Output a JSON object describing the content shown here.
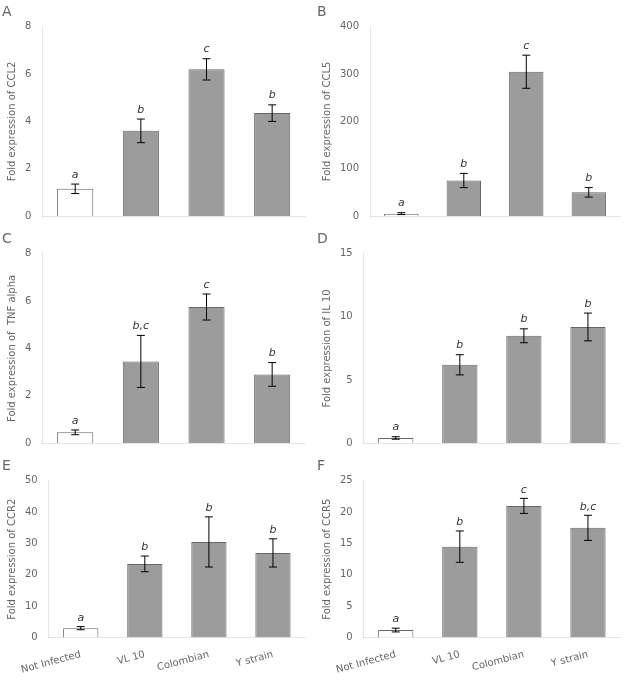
{
  "chart_data": [
    {
      "type": "bar",
      "title": "A",
      "ylabel": "Fold expression of CCL2",
      "categories": [
        "Not Infected",
        "VL 10",
        "Colombian",
        "Y strain"
      ],
      "values": [
        1.15,
        3.6,
        6.2,
        4.35
      ],
      "errors": [
        0.2,
        0.5,
        0.45,
        0.35
      ],
      "annotations": [
        "a",
        "b",
        "c",
        "b"
      ],
      "colors": [
        "#ffffff",
        "#9c9c9c",
        "#9c9c9c",
        "#9c9c9c"
      ],
      "ylim": [
        0,
        8
      ],
      "yticks": [
        0,
        2,
        4,
        6,
        8
      ],
      "grid": false,
      "tick_labels": "y"
    },
    {
      "type": "bar",
      "title": "B",
      "ylabel": "Fold expression of CCL5",
      "categories": [
        "Not Infected",
        "VL 10",
        "Colombian",
        "Y strain"
      ],
      "values": [
        5,
        75,
        305,
        50
      ],
      "errors": [
        2,
        15,
        35,
        10
      ],
      "annotations": [
        "a",
        "b",
        "c",
        "b"
      ],
      "colors": [
        "#ffffff",
        "#9c9c9c",
        "#9c9c9c",
        "#9c9c9c"
      ],
      "ylim": [
        0,
        400
      ],
      "yticks": [
        0,
        100,
        200,
        300,
        400
      ],
      "grid": false,
      "tick_labels": "y"
    },
    {
      "type": "bar",
      "title": "C",
      "ylabel": "Fold expression of  TNF alpha",
      "categories": [
        "Not Infected",
        "VL 10",
        "Colombian",
        "Y strain"
      ],
      "values": [
        0.45,
        3.45,
        5.75,
        2.9
      ],
      "errors": [
        0.1,
        1.1,
        0.55,
        0.5
      ],
      "annotations": [
        "a",
        "b,c",
        "c",
        "b"
      ],
      "colors": [
        "#ffffff",
        "#9c9c9c",
        "#9c9c9c",
        "#9c9c9c"
      ],
      "ylim": [
        0,
        8
      ],
      "yticks": [
        0,
        2,
        4,
        6,
        8
      ],
      "grid": false,
      "tick_labels": "y"
    },
    {
      "type": "bar",
      "title": "D",
      "ylabel": "Fold expression of IL 10",
      "categories": [
        "Not Infected",
        "VL 10",
        "Colombian",
        "Y strain"
      ],
      "values": [
        0.4,
        6.2,
        8.5,
        9.2
      ],
      "errors": [
        0.1,
        0.8,
        0.55,
        1.1
      ],
      "annotations": [
        "a",
        "b",
        "b",
        "b"
      ],
      "colors": [
        "#ffffff",
        "#9c9c9c",
        "#9c9c9c",
        "#9c9c9c"
      ],
      "ylim": [
        0,
        15
      ],
      "yticks": [
        0,
        5,
        10,
        15
      ],
      "grid": false,
      "tick_labels": "y"
    },
    {
      "type": "bar",
      "title": "E",
      "ylabel": "Fold expression of CCR2",
      "categories": [
        "Not Infected",
        "VL 10",
        "Colombian",
        "Y strain"
      ],
      "values": [
        3.0,
        23.5,
        30.5,
        27.0
      ],
      "errors": [
        0.5,
        2.5,
        8.0,
        4.5
      ],
      "annotations": [
        "a",
        "b",
        "b",
        "b"
      ],
      "colors": [
        "#ffffff",
        "#9c9c9c",
        "#9c9c9c",
        "#9c9c9c"
      ],
      "ylim": [
        0,
        50
      ],
      "yticks": [
        0,
        10,
        20,
        30,
        40,
        50
      ],
      "grid": false
    },
    {
      "type": "bar",
      "title": "F",
      "ylabel": "Fold expression of CCR5",
      "categories": [
        "Not Infected",
        "VL 10",
        "Colombian",
        "Y strain"
      ],
      "values": [
        1.2,
        14.5,
        21.0,
        17.5
      ],
      "errors": [
        0.3,
        2.5,
        1.2,
        2.0
      ],
      "annotations": [
        "a",
        "b",
        "c",
        "b,c"
      ],
      "colors": [
        "#ffffff",
        "#9c9c9c",
        "#9c9c9c",
        "#9c9c9c"
      ],
      "ylim": [
        0,
        25
      ],
      "yticks": [
        0,
        5,
        10,
        15,
        20,
        25
      ],
      "grid": false
    }
  ]
}
